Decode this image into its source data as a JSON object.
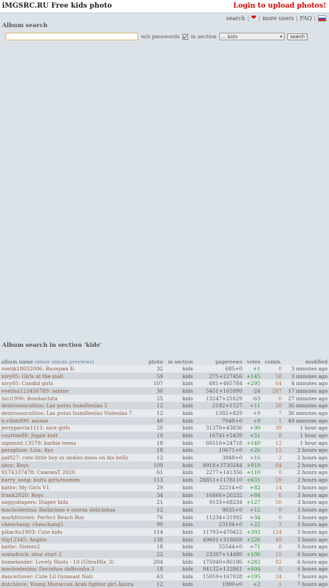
{
  "header": {
    "title": "iMGSRC.RU Free kids photo",
    "upload": "Login to upload photos!"
  },
  "nav": {
    "search": "search",
    "more_users": "more users",
    "faq": "FAQ"
  },
  "search": {
    "heading": "Album search",
    "wo_passwords": "w/o passwords",
    "in_section": "in section",
    "section_value": "... kids",
    "button": "search",
    "value": ""
  },
  "results": {
    "heading": "Album search in section 'kids'",
    "columns": {
      "name": "album name",
      "previews": "(show album previews)",
      "photo": "photo",
      "section": "in section",
      "views": "pageviews",
      "votes": "votes",
      "comm": "comm.",
      "modified": "modified"
    },
    "rows": [
      {
        "name": "svetik18032006: Валерия Б.",
        "photo": "32",
        "section": "kids",
        "views": "685+0",
        "votes": "+1",
        "comm": "0",
        "modified": "3 minutes ago"
      },
      {
        "name": "nivy05: Girls at the mall",
        "photo": "59",
        "section": "kids",
        "views": "275+227456",
        "votes": "+145",
        "comm": "58",
        "modified": "3 minutes ago"
      },
      {
        "name": "nivy05: Candid girls",
        "photo": "107",
        "section": "kids",
        "views": "681+465784",
        "votes": "+295",
        "comm": "64",
        "modified": "4 minutes ago"
      },
      {
        "name": "evelina123456789: sabine",
        "photo": "30",
        "section": "kids",
        "views": "5451+165990",
        "votes": "-24",
        "comm": "287",
        "modified": "17 minutes ago"
      },
      {
        "name": "luci1990: Bombachita",
        "photo": "25",
        "section": "kids",
        "views": "13247+21629",
        "votes": "-63",
        "comm": "0",
        "modified": "27 minutes ago"
      },
      {
        "name": "destrossoculitos: Las putas humillenlas 3",
        "photo": "12",
        "section": "kids",
        "views": "2182+1527",
        "votes": "+11",
        "comm": "20",
        "modified": "36 minutes ago"
      },
      {
        "name": "destrossoculitos: Las putas humillenlas Violenlas 7",
        "photo": "12",
        "section": "kids",
        "views": "1382+829",
        "votes": "+9",
        "comm": "7",
        "modified": "36 minutes ago"
      },
      {
        "name": "n.vilim999: малая",
        "photo": "40",
        "section": "kids",
        "views": "7048+0",
        "votes": "+9",
        "comm": "1",
        "modified": "49 minutes ago"
      },
      {
        "name": "jerrygarcia1111: nice girls",
        "photo": "20",
        "section": "kids",
        "views": "31370+43036",
        "votes": "+90",
        "comm": "39",
        "modified": "1 hour ago"
      },
      {
        "name": "courtne88: Jiggle butt",
        "photo": "19",
        "section": "kids",
        "views": "16741+5439",
        "votes": "+51",
        "comm": "8",
        "modified": "1 hour ago"
      },
      {
        "name": "zigemist.13579: barbie teens",
        "photo": "18",
        "section": "kids",
        "views": "60510+24718",
        "votes": "+140",
        "comm": "12",
        "modified": "1 hour ago"
      },
      {
        "name": "paraphise: Lisa, 4yo",
        "photo": "18",
        "section": "kids",
        "views": "10671+0",
        "votes": "+26",
        "comm": "12",
        "modified": "2 hours ago"
      },
      {
        "name": "jad027: cute little boy in undies mess on his belly",
        "photo": "12",
        "section": "kids",
        "views": "3948+0",
        "votes": "+16",
        "comm": "2",
        "modified": "2 hours ago"
      },
      {
        "name": "sboy: Boys",
        "photo": "109",
        "section": "kids",
        "views": "8918+3730244",
        "votes": "+919",
        "comm": "84",
        "modified": "2 hours ago"
      },
      {
        "name": "9174337478: СамонаТ 2020",
        "photo": "61",
        "section": "kids",
        "views": "2277+141356",
        "votes": "+110",
        "comm": "0",
        "modified": "2 hours ago"
      },
      {
        "name": "barry_song: butts girls/women",
        "photo": "113",
        "section": "kids",
        "views": "28851+1178110",
        "votes": "+631",
        "comm": "59",
        "modified": "2 hours ago"
      },
      {
        "name": "kathv: My Girls V1",
        "photo": "29",
        "section": "kids",
        "views": "32214+0",
        "votes": "+82",
        "comm": "14",
        "modified": "3 hours ago"
      },
      {
        "name": "frank2020: Boys",
        "photo": "34",
        "section": "kids",
        "views": "16866+26232",
        "votes": "+84",
        "comm": "6",
        "modified": "3 hours ago"
      },
      {
        "name": "saggydiapers: Diaper kids",
        "photo": "21",
        "section": "kids",
        "views": "9133+68234",
        "votes": "+127",
        "comm": "50",
        "modified": "3 hours ago"
      },
      {
        "name": "machodenina: Bailarinas e outras delicinhas",
        "photo": "12",
        "section": "kids",
        "views": "9835+0",
        "votes": "+12",
        "comm": "0",
        "modified": "3 hours ago"
      },
      {
        "name": "markfstories: Perfect Beach Boy",
        "photo": "76",
        "section": "kids",
        "views": "11234+31992",
        "votes": "+34",
        "comm": "0",
        "modified": "3 hours ago"
      },
      {
        "name": "cheochang: cheochang5",
        "photo": "90",
        "section": "kids",
        "views": "23104+0",
        "votes": "+22",
        "comm": "2",
        "modified": "5 hours ago"
      },
      {
        "name": "pikachu1993: Cute kids",
        "photo": "114",
        "section": "kids",
        "views": "11793+470452",
        "votes": "+392",
        "comm": "124",
        "modified": "5 hours ago"
      },
      {
        "name": "tllg12345: Angles",
        "photo": "138",
        "section": "kids",
        "views": "49601+318669",
        "votes": "+226",
        "comm": "49",
        "modified": "5 hours ago"
      },
      {
        "name": "kathv: Sisters2",
        "photo": "18",
        "section": "kids",
        "views": "55544+0",
        "votes": "+71",
        "comm": "8",
        "modified": "5 hours ago"
      },
      {
        "name": "sonia4rick: slow start 2",
        "photo": "22",
        "section": "kids",
        "views": "23307+14480",
        "votes": "+106",
        "comm": "15",
        "modified": "6 hours ago"
      },
      {
        "name": "homelander: Lovely Shots - 10 (UltraMix_3)",
        "photo": "204",
        "section": "kids",
        "views": "175040+86186",
        "votes": "+282",
        "comm": "82",
        "modified": "6 hours ago"
      },
      {
        "name": "machodenina: Docinhos daBronha 3",
        "photo": "18",
        "section": "kids",
        "views": "94132+132861",
        "votes": "+604",
        "comm": "0",
        "modified": "6 hours ago"
      },
      {
        "name": "dancerlover: Cute Lil Gymnast Nati",
        "photo": "63",
        "section": "kids",
        "views": "15059+167028",
        "votes": "+195",
        "comm": "24",
        "modified": "7 hours ago"
      },
      {
        "name": "dutchlove: Young Moroccan Arab fighter girl Amira",
        "photo": "12",
        "section": "kids",
        "views": "1990+0",
        "votes": "+2",
        "comm": "1",
        "modified": "7 hours ago"
      }
    ]
  }
}
